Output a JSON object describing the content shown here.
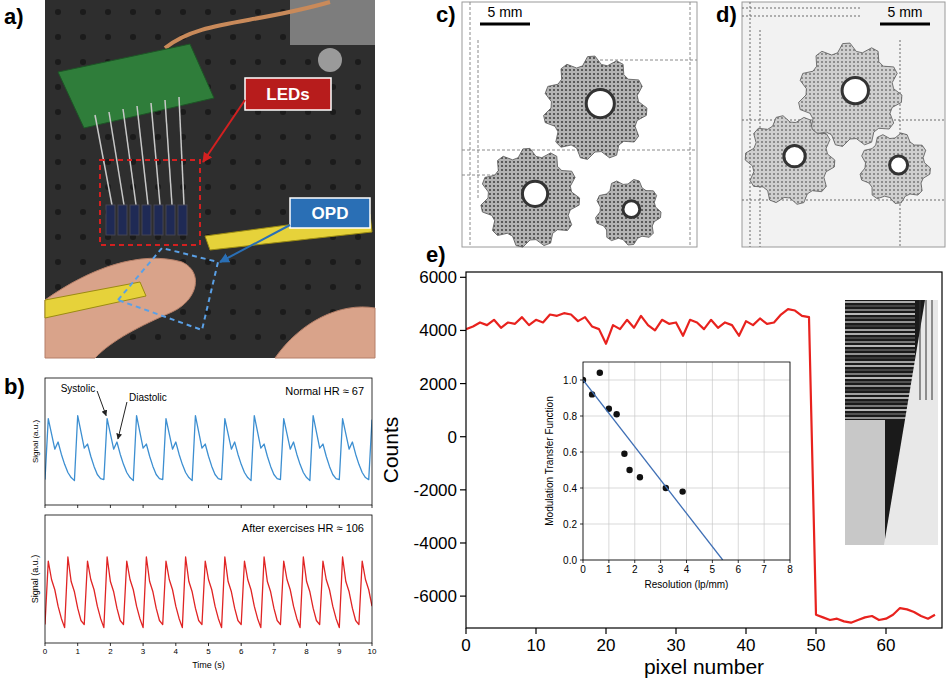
{
  "figure": {
    "panel_labels": [
      "a)",
      "b)",
      "c)",
      "d)",
      "e)"
    ],
    "photo_labels": [
      "LEDs",
      "OPD"
    ],
    "scale_bars": [
      "5 mm",
      "5 mm"
    ]
  },
  "chart_data": [
    {
      "type": "line",
      "y_label": "Signal (a.u.)",
      "annotations": [
        "Systolic",
        "Diastolic",
        "Normal HR ≈ 67"
      ],
      "color": "#3d8fd1",
      "tick_labels": false,
      "xlim": [
        0,
        10
      ],
      "ylim": [
        0,
        1.25
      ],
      "xticks": [
        0,
        1,
        2,
        3,
        4,
        5,
        6,
        7,
        8,
        9,
        10
      ],
      "x": [
        0,
        0.1,
        0.2,
        0.3,
        0.4,
        0.5,
        0.6,
        0.7,
        0.8,
        0.9,
        1,
        1.1,
        1.2,
        1.3,
        1.4,
        1.5,
        1.6,
        1.7,
        1.8,
        1.9,
        2,
        2.1,
        2.2,
        2.3,
        2.4,
        2.5,
        2.6,
        2.7,
        2.8,
        2.9,
        3,
        3.1,
        3.2,
        3.3,
        3.4,
        3.5,
        3.6,
        3.7,
        3.8,
        3.9,
        4,
        4.1,
        4.2,
        4.3,
        4.4,
        4.5,
        4.6,
        4.7,
        4.8,
        4.9,
        5,
        5.1,
        5.2,
        5.3,
        5.4,
        5.5,
        5.6,
        5.7,
        5.8,
        5.9,
        6,
        6.1,
        6.2,
        6.3,
        6.4,
        6.5,
        6.6,
        6.7,
        6.8,
        6.9,
        7,
        7.1,
        7.2,
        7.3,
        7.4,
        7.5,
        7.6,
        7.7,
        7.8,
        7.9,
        8,
        8.1,
        8.2,
        8.3,
        8.4,
        8.5,
        8.6,
        8.7,
        8.8,
        8.9,
        9,
        9.1,
        9.2,
        9.3,
        9.4,
        9.5,
        9.6,
        9.7,
        9.8,
        9.9,
        10
      ],
      "values": [
        0.25,
        0.85,
        0.7,
        0.55,
        0.62,
        0.5,
        0.4,
        0.32,
        0.27,
        0.24,
        0.88,
        0.72,
        0.56,
        0.6,
        0.48,
        0.38,
        0.3,
        0.26,
        0.25,
        0.85,
        0.7,
        0.55,
        0.62,
        0.5,
        0.4,
        0.32,
        0.27,
        0.24,
        0.88,
        0.72,
        0.56,
        0.6,
        0.48,
        0.38,
        0.3,
        0.26,
        0.25,
        0.85,
        0.7,
        0.55,
        0.62,
        0.5,
        0.4,
        0.32,
        0.27,
        0.24,
        0.88,
        0.72,
        0.56,
        0.6,
        0.48,
        0.38,
        0.3,
        0.26,
        0.25,
        0.85,
        0.7,
        0.55,
        0.62,
        0.5,
        0.4,
        0.32,
        0.27,
        0.24,
        0.88,
        0.72,
        0.56,
        0.6,
        0.48,
        0.38,
        0.3,
        0.26,
        0.25,
        0.85,
        0.7,
        0.55,
        0.62,
        0.5,
        0.4,
        0.32,
        0.27,
        0.24,
        0.88,
        0.72,
        0.56,
        0.6,
        0.48,
        0.38,
        0.3,
        0.26,
        0.25,
        0.85,
        0.7,
        0.55,
        0.62,
        0.5,
        0.4,
        0.32,
        0.27,
        0.25,
        0.84
      ]
    },
    {
      "type": "line",
      "x_label": "Time (s)",
      "y_label": "Signal (a.u.)",
      "annotations": [
        "After exercises HR ≈ 106"
      ],
      "color": "#e02424",
      "tick_labels": "x",
      "xlim": [
        0,
        10
      ],
      "ylim": [
        0,
        1.25
      ],
      "xticks": [
        0,
        1,
        2,
        3,
        4,
        5,
        6,
        7,
        8,
        9,
        10
      ],
      "x": [
        0,
        0.1,
        0.2,
        0.3,
        0.4,
        0.5,
        0.6,
        0.7,
        0.8,
        0.9,
        1,
        1.1,
        1.2,
        1.3,
        1.4,
        1.5,
        1.6,
        1.7,
        1.8,
        1.9,
        2,
        2.1,
        2.2,
        2.3,
        2.4,
        2.5,
        2.6,
        2.7,
        2.8,
        2.9,
        3,
        3.1,
        3.2,
        3.3,
        3.4,
        3.5,
        3.6,
        3.7,
        3.8,
        3.9,
        4,
        4.1,
        4.2,
        4.3,
        4.4,
        4.5,
        4.6,
        4.7,
        4.8,
        4.9,
        5,
        5.1,
        5.2,
        5.3,
        5.4,
        5.5,
        5.6,
        5.7,
        5.8,
        5.9,
        6,
        6.1,
        6.2,
        6.3,
        6.4,
        6.5,
        6.6,
        6.7,
        6.8,
        6.9,
        7,
        7.1,
        7.2,
        7.3,
        7.4,
        7.5,
        7.6,
        7.7,
        7.8,
        7.9,
        8,
        8.1,
        8.2,
        8.3,
        8.4,
        8.5,
        8.6,
        8.7,
        8.8,
        8.9,
        9,
        9.1,
        9.2,
        9.3,
        9.4,
        9.5,
        9.6,
        9.7,
        9.8,
        9.9,
        10
      ],
      "values": [
        0.18,
        0.8,
        0.62,
        0.52,
        0.36,
        0.24,
        0.15,
        0.84,
        0.6,
        0.5,
        0.34,
        0.22,
        0.18,
        0.8,
        0.62,
        0.52,
        0.36,
        0.24,
        0.15,
        0.84,
        0.6,
        0.5,
        0.34,
        0.22,
        0.18,
        0.8,
        0.62,
        0.52,
        0.36,
        0.24,
        0.15,
        0.84,
        0.6,
        0.5,
        0.34,
        0.22,
        0.18,
        0.8,
        0.62,
        0.52,
        0.36,
        0.24,
        0.15,
        0.84,
        0.6,
        0.5,
        0.34,
        0.22,
        0.18,
        0.8,
        0.62,
        0.52,
        0.36,
        0.24,
        0.15,
        0.84,
        0.6,
        0.5,
        0.34,
        0.22,
        0.18,
        0.8,
        0.62,
        0.52,
        0.36,
        0.24,
        0.15,
        0.84,
        0.6,
        0.5,
        0.34,
        0.22,
        0.18,
        0.8,
        0.62,
        0.52,
        0.36,
        0.24,
        0.15,
        0.84,
        0.6,
        0.5,
        0.34,
        0.22,
        0.18,
        0.8,
        0.62,
        0.52,
        0.36,
        0.24,
        0.15,
        0.84,
        0.6,
        0.5,
        0.34,
        0.22,
        0.18,
        0.8,
        0.62,
        0.52,
        0.36
      ]
    },
    {
      "type": "line",
      "x_label": "pixel number",
      "y_label": "Counts",
      "color": "#e8221e",
      "grid": false,
      "xlim": [
        0,
        68
      ],
      "ylim": [
        -7200,
        6200
      ],
      "xticks": [
        0,
        10,
        20,
        30,
        40,
        50,
        60
      ],
      "yticks": [
        -6000,
        -4000,
        -2000,
        0,
        2000,
        4000,
        6000
      ],
      "x": [
        0,
        1,
        2,
        3,
        4,
        5,
        6,
        7,
        8,
        9,
        10,
        11,
        12,
        13,
        14,
        15,
        16,
        17,
        18,
        19,
        20,
        21,
        22,
        23,
        24,
        25,
        26,
        27,
        28,
        29,
        30,
        31,
        32,
        33,
        34,
        35,
        36,
        37,
        38,
        39,
        40,
        41,
        42,
        43,
        44,
        45,
        46,
        47,
        48,
        49,
        50,
        51,
        52,
        53,
        54,
        55,
        56,
        57,
        58,
        59,
        60,
        61,
        62,
        63,
        64,
        65,
        66,
        67
      ],
      "values": [
        4050,
        4150,
        4300,
        4200,
        4400,
        4100,
        4300,
        4250,
        4500,
        4200,
        4400,
        4300,
        4600,
        4550,
        4650,
        4600,
        4350,
        4500,
        4150,
        4050,
        3500,
        4200,
        4050,
        4400,
        4100,
        4550,
        4200,
        4000,
        4400,
        4250,
        4300,
        3800,
        4400,
        4300,
        4050,
        4400,
        4100,
        4300,
        4200,
        3800,
        4350,
        4200,
        4450,
        4250,
        4300,
        4600,
        4800,
        4750,
        4550,
        4500,
        -6700,
        -6800,
        -6900,
        -6850,
        -6950,
        -7000,
        -6900,
        -6800,
        -6750,
        -6900,
        -6850,
        -6700,
        -6450,
        -6500,
        -6600,
        -6750,
        -6850,
        -6700
      ]
    },
    {
      "type": "scatter",
      "x_label": "Resolution (lp/mm)",
      "y_label": "Modulation Transfer Function",
      "grid": true,
      "xlim": [
        0,
        8
      ],
      "ylim": [
        0,
        1.1
      ],
      "xticks": [
        0,
        1,
        2,
        3,
        4,
        5,
        6,
        7,
        8
      ],
      "yticks": [
        {
          "value": 0,
          "label": "0.0"
        },
        0.2,
        0.4,
        0.6,
        0.8,
        {
          "value": 1,
          "label": "1.0"
        }
      ],
      "series": [
        {
          "type": "scatter",
          "marker": "circle",
          "color": "#111111",
          "x": [
            0,
            0.35,
            0.65,
            1.0,
            1.3,
            1.6,
            1.8,
            2.2,
            3.2,
            3.85
          ],
          "values": [
            1.0,
            0.92,
            1.04,
            0.84,
            0.81,
            0.59,
            0.5,
            0.46,
            0.4,
            0.38
          ]
        },
        {
          "type": "line",
          "color": "#3f6fb5",
          "x": [
            0,
            5.4
          ],
          "values": [
            1.0,
            0
          ]
        }
      ]
    }
  ]
}
